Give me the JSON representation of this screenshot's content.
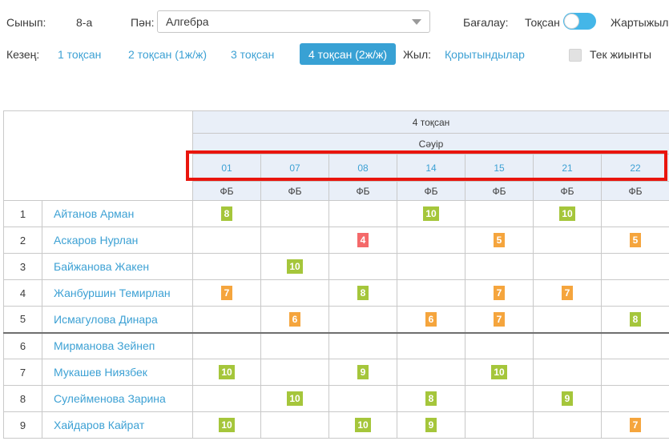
{
  "filters": {
    "class_label": "Сынып:",
    "class_value": "8-а",
    "subject_label": "Пән:",
    "subject_value": "Алгебра",
    "grading_label": "Бағалау:",
    "grading_option_left": "Тоқсан",
    "grading_option_right": "Жартыжыл",
    "period_label": "Кезең:",
    "period_tabs": [
      {
        "label": "1 тоқсан",
        "active": false
      },
      {
        "label": "2 тоқсан (1ж/ж)",
        "active": false
      },
      {
        "label": "3 тоқсан",
        "active": false
      },
      {
        "label": "4 тоқсан (2ж/ж)",
        "active": true
      }
    ],
    "year_label": "Жыл:",
    "year_link": "Қорытындылар",
    "only_summary_label": "Тек жиынты"
  },
  "table": {
    "quarter_header": "4 тоқсан",
    "month_header": "Сәуір",
    "dates": [
      "01",
      "07",
      "08",
      "14",
      "15",
      "21",
      "22"
    ],
    "lesson_type": "ФБ",
    "students": [
      {
        "num": "1",
        "name": "Айтанов Арман",
        "grades": [
          "8",
          null,
          null,
          "10",
          null,
          "10",
          null
        ]
      },
      {
        "num": "2",
        "name": "Аскаров Нурлан",
        "grades": [
          null,
          null,
          "4",
          null,
          "5",
          null,
          "5"
        ]
      },
      {
        "num": "3",
        "name": "Байжанова Жакен",
        "grades": [
          null,
          "10",
          null,
          null,
          null,
          null,
          null
        ]
      },
      {
        "num": "4",
        "name": "Жанбуршин Темирлан",
        "grades": [
          "7",
          null,
          "8",
          null,
          "7",
          "7",
          null
        ]
      },
      {
        "num": "5",
        "name": "Исмагулова Динара",
        "grades": [
          null,
          "6",
          null,
          "6",
          "7",
          null,
          "8"
        ]
      },
      {
        "num": "6",
        "name": "Мирманова Зейнеп",
        "grades": [
          null,
          null,
          null,
          null,
          null,
          null,
          null
        ]
      },
      {
        "num": "7",
        "name": "Мукашев Ниязбек",
        "grades": [
          "10",
          null,
          "9",
          null,
          "10",
          null,
          null
        ]
      },
      {
        "num": "8",
        "name": "Сулейменова Зарина",
        "grades": [
          null,
          "10",
          null,
          "8",
          null,
          "9",
          null
        ]
      },
      {
        "num": "9",
        "name": "Хайдаров Кайрат",
        "grades": [
          "10",
          null,
          "10",
          "9",
          null,
          null,
          "7"
        ]
      }
    ],
    "grade_colors": {
      "4": "#f4696a",
      "5": "#f5a53d",
      "6": "#f5a53d",
      "7": "#f5a53d",
      "8": "#a5c63b",
      "9": "#a5c63b",
      "10": "#a5c63b"
    }
  },
  "colors": {
    "accent_blue": "#3da1d4",
    "active_tab_bg": "#38a1d4",
    "toggle_track": "#44b6e8",
    "header_bg": "#e9eff8",
    "highlight_red": "#e9150d",
    "grade_green": "#a5c63b",
    "grade_orange": "#f5a53d",
    "grade_red": "#f4696a"
  }
}
